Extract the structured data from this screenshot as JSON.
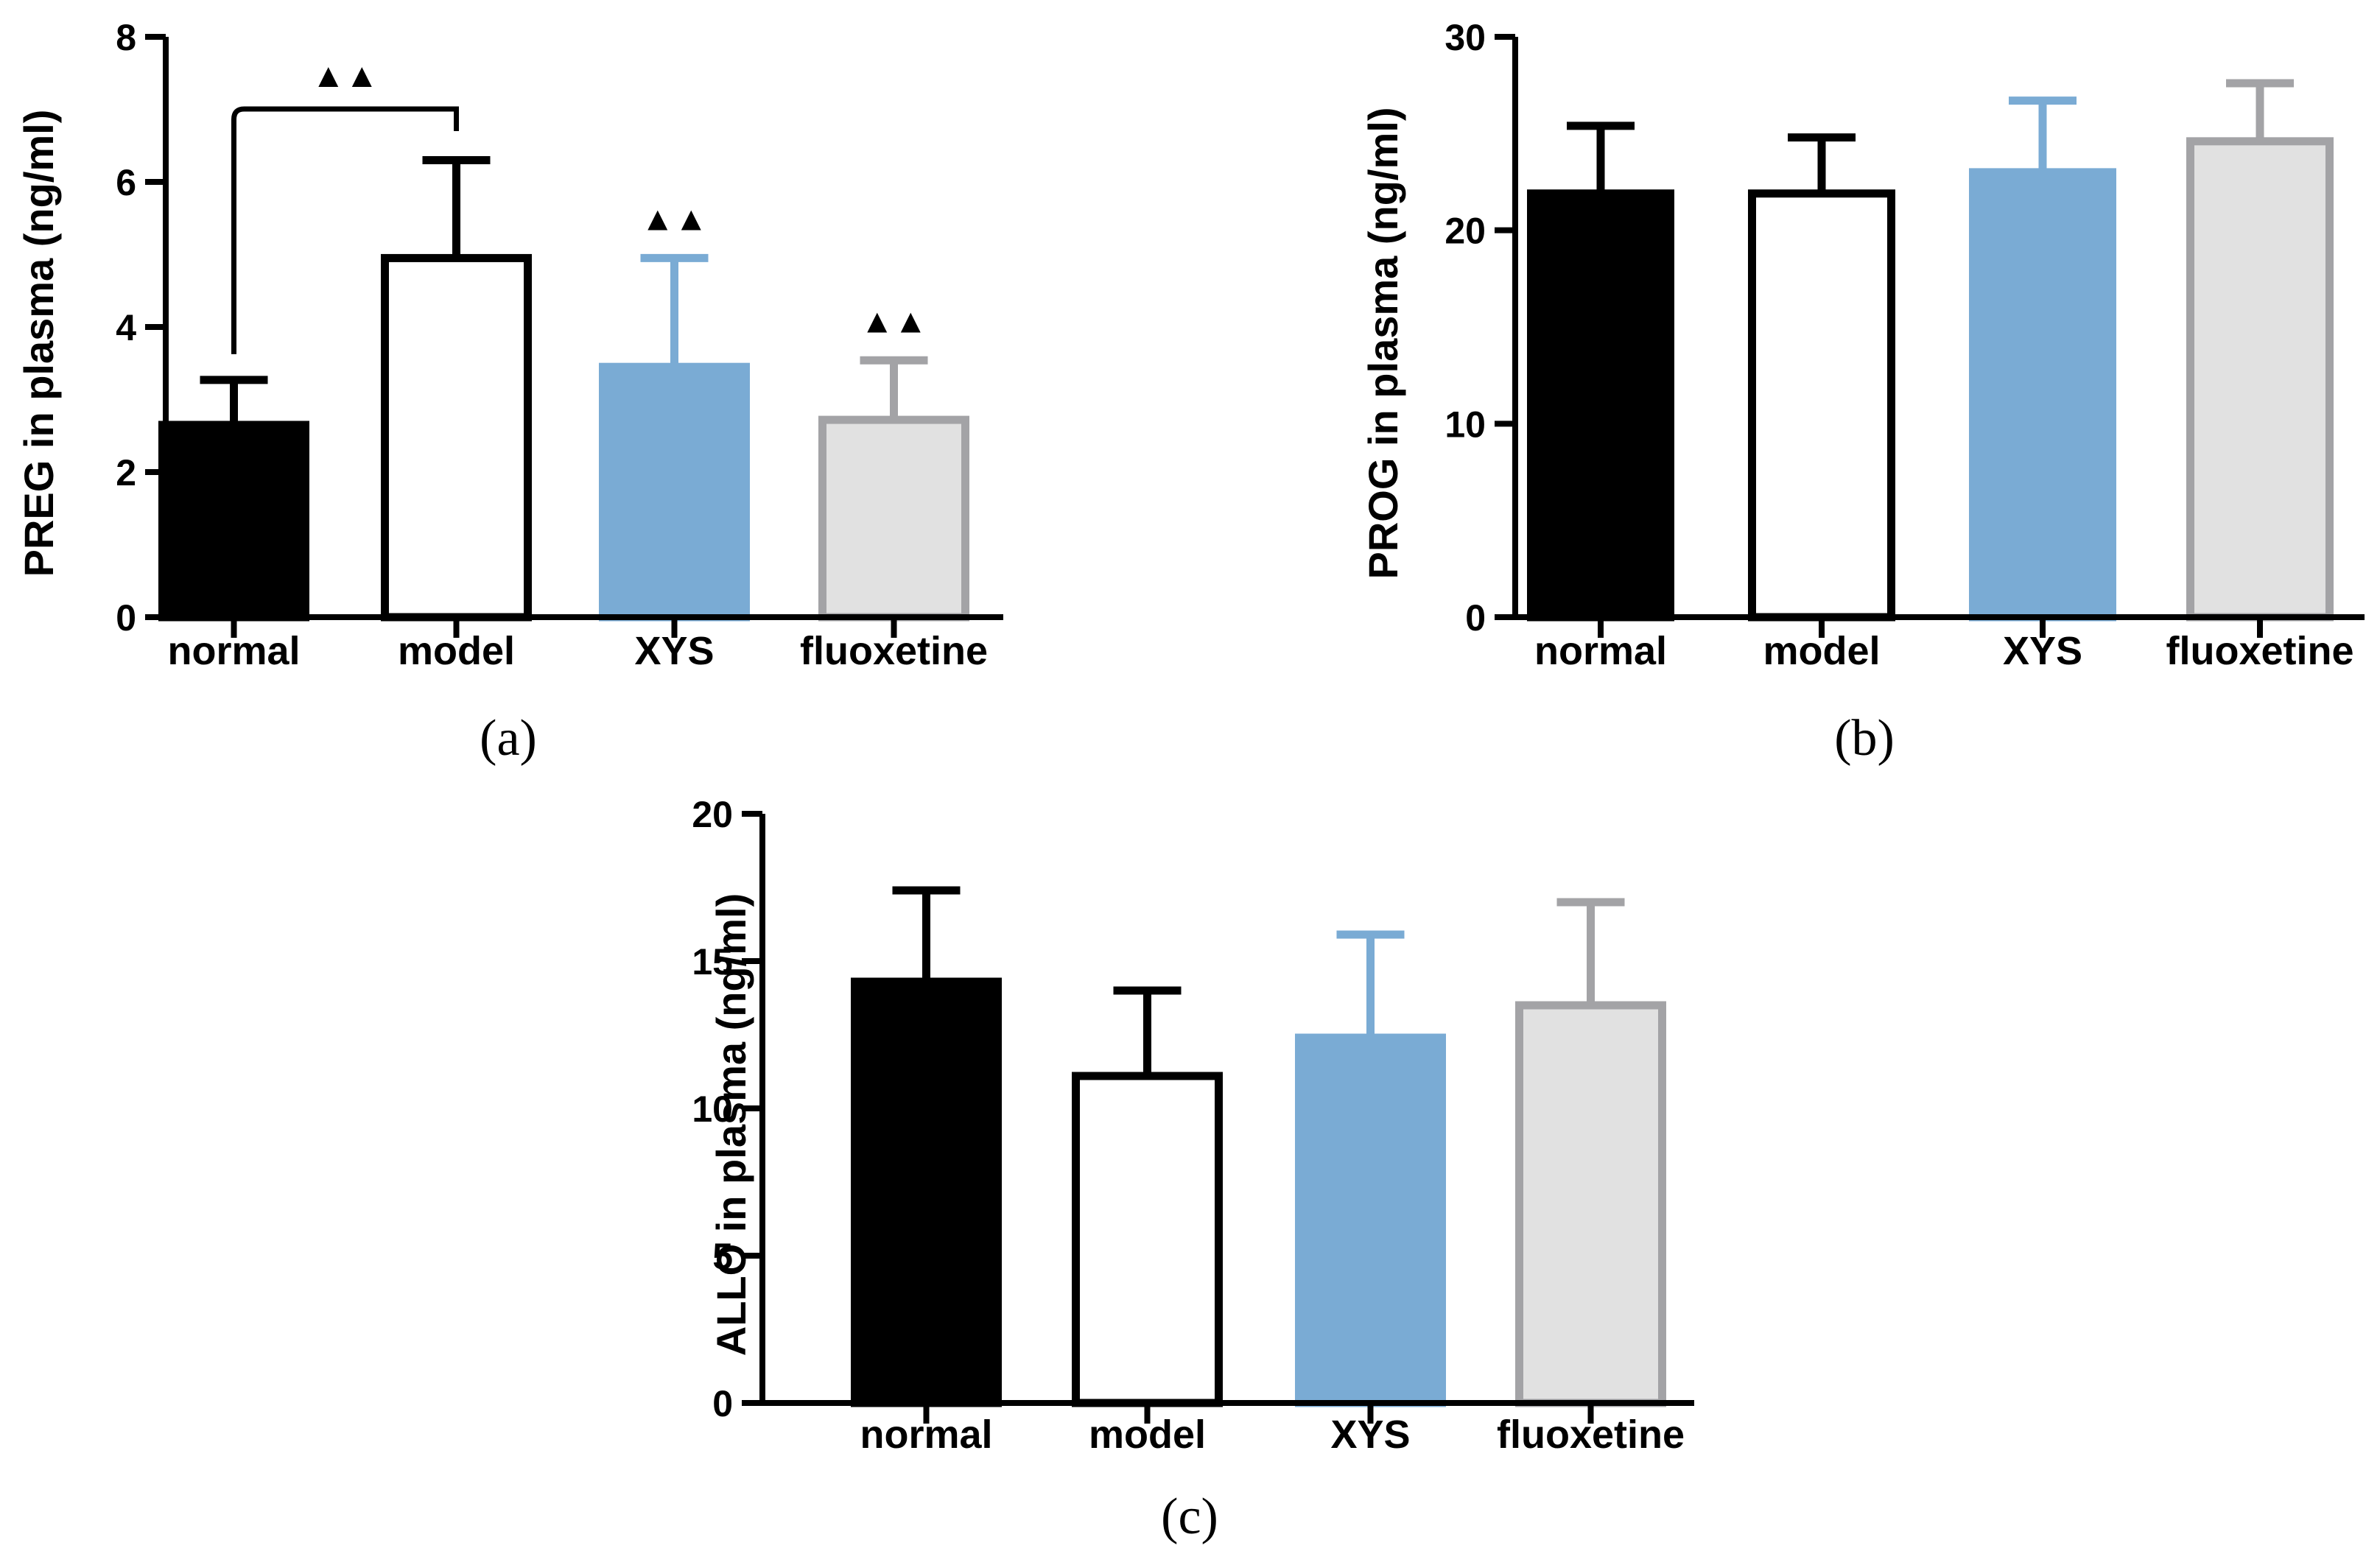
{
  "colors": {
    "normal_fill": "#000000",
    "normal_stroke": "#000000",
    "model_fill": "#ffffff",
    "model_stroke": "#000000",
    "xys_fill": "#7aabd4",
    "xys_stroke": "#7aabd4",
    "fluoxetine_fill": "#e1e1e1",
    "fluoxetine_stroke": "#a3a3a6"
  },
  "chart_data": [
    {
      "type": "bar",
      "panel_label": "(a)",
      "ylabel": "PREG in plasma (ng/ml)",
      "categories": [
        "normal",
        "model",
        "XYS",
        "fluoxetine"
      ],
      "values": [
        2.65,
        4.95,
        3.45,
        2.72
      ],
      "errors": [
        0.62,
        1.35,
        1.5,
        0.82
      ],
      "ylim": [
        0,
        8
      ],
      "yticks": [
        0,
        2,
        4,
        6,
        8
      ],
      "annotations": {
        "bracket": {
          "from": "normal",
          "to": "model",
          "text": "▲▲"
        },
        "markers": [
          {
            "category": "XYS",
            "text": "▲▲"
          },
          {
            "category": "fluoxetine",
            "text": "▲▲"
          }
        ]
      }
    },
    {
      "type": "bar",
      "panel_label": "(b)",
      "ylabel": "PROG in plasma (ng/ml)",
      "categories": [
        "normal",
        "model",
        "XYS",
        "fluoxetine"
      ],
      "values": [
        21.9,
        21.9,
        23.0,
        24.6
      ],
      "errors": [
        3.5,
        2.9,
        3.7,
        3.0
      ],
      "ylim": [
        0,
        30
      ],
      "yticks": [
        0,
        10,
        20,
        30
      ]
    },
    {
      "type": "bar",
      "panel_label": "(c)",
      "ylabel": "ALLO in plasma (ng/ml)",
      "categories": [
        "normal",
        "model",
        "XYS",
        "fluoxetine"
      ],
      "values": [
        14.3,
        11.1,
        12.4,
        13.5
      ],
      "errors": [
        3.1,
        2.9,
        3.5,
        3.5
      ],
      "ylim": [
        0,
        20
      ],
      "yticks": [
        0,
        5,
        10,
        15,
        20
      ]
    }
  ]
}
